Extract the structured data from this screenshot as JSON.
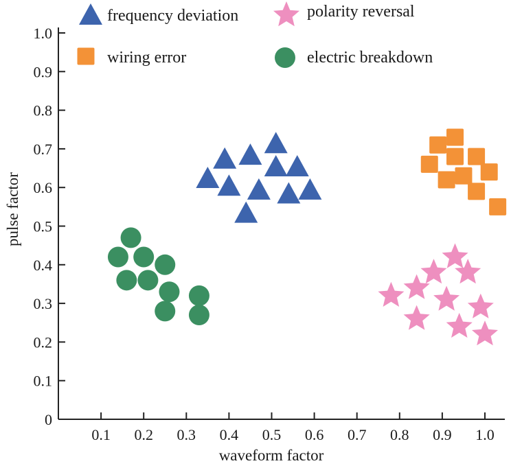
{
  "chart_data": {
    "type": "scatter",
    "title": "",
    "xlabel": "waveform factor",
    "ylabel": "pulse factor",
    "xlim": [
      0,
      1.05
    ],
    "ylim": [
      0,
      1.0
    ],
    "xticks": [
      "0.1",
      "0.2",
      "0.3",
      "0.4",
      "0.5",
      "0.6",
      "0.7",
      "0.8",
      "0.9",
      "1.0"
    ],
    "yticks": [
      "0",
      "0.1",
      "0.2",
      "0.3",
      "0.4",
      "0.5",
      "0.6",
      "0.7",
      "0.8",
      "0.9",
      "1.0"
    ],
    "grid": false,
    "legend_position": "top",
    "series": [
      {
        "name": "frequency deviation",
        "marker": "triangle",
        "color": "#3d64ad",
        "points": [
          [
            0.35,
            0.62
          ],
          [
            0.39,
            0.67
          ],
          [
            0.4,
            0.6
          ],
          [
            0.45,
            0.68
          ],
          [
            0.44,
            0.53
          ],
          [
            0.47,
            0.59
          ],
          [
            0.51,
            0.71
          ],
          [
            0.51,
            0.65
          ],
          [
            0.56,
            0.65
          ],
          [
            0.54,
            0.58
          ],
          [
            0.59,
            0.59
          ]
        ]
      },
      {
        "name": "polarity reversal",
        "marker": "star",
        "color": "#ee8fbf",
        "points": [
          [
            0.78,
            0.32
          ],
          [
            0.84,
            0.34
          ],
          [
            0.84,
            0.26
          ],
          [
            0.88,
            0.38
          ],
          [
            0.93,
            0.42
          ],
          [
            0.96,
            0.38
          ],
          [
            0.91,
            0.31
          ],
          [
            0.94,
            0.24
          ],
          [
            0.99,
            0.29
          ],
          [
            1.0,
            0.22
          ]
        ]
      },
      {
        "name": "wiring error",
        "marker": "square",
        "color": "#f39237",
        "points": [
          [
            0.87,
            0.66
          ],
          [
            0.89,
            0.71
          ],
          [
            0.91,
            0.62
          ],
          [
            0.93,
            0.73
          ],
          [
            0.93,
            0.68
          ],
          [
            0.95,
            0.63
          ],
          [
            0.98,
            0.68
          ],
          [
            0.98,
            0.59
          ],
          [
            1.01,
            0.64
          ],
          [
            1.03,
            0.55
          ]
        ]
      },
      {
        "name": "electric breakdown",
        "marker": "circle",
        "color": "#3b8f61",
        "points": [
          [
            0.14,
            0.42
          ],
          [
            0.17,
            0.47
          ],
          [
            0.16,
            0.36
          ],
          [
            0.2,
            0.42
          ],
          [
            0.21,
            0.36
          ],
          [
            0.25,
            0.4
          ],
          [
            0.26,
            0.33
          ],
          [
            0.25,
            0.28
          ],
          [
            0.33,
            0.32
          ],
          [
            0.33,
            0.27
          ]
        ]
      }
    ]
  }
}
